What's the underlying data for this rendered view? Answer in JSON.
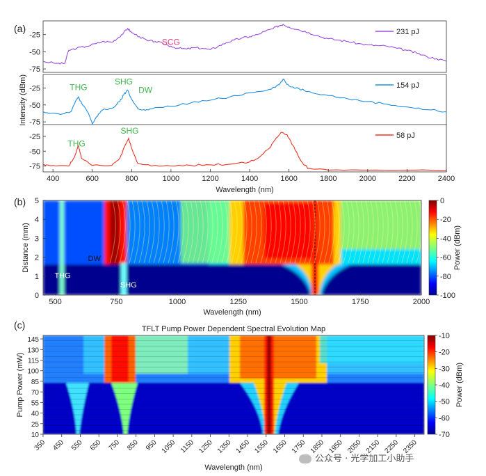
{
  "chart_data": [
    {
      "type": "line",
      "panel_label": "(a)",
      "ylabel": "Intensity (dBm)",
      "xlabel": "Wavelength (nm)",
      "xlim": [
        350,
        2400
      ],
      "x_ticks": [
        400,
        600,
        800,
        1000,
        1200,
        1400,
        1600,
        1800,
        2000,
        2200,
        2400
      ],
      "subplots": [
        {
          "name": "231 pJ",
          "color": "#9b4ddc",
          "ylim": [
            -80,
            -5
          ],
          "yticks": [
            -25,
            -50,
            -75
          ],
          "annotations": [
            {
              "text": "SCG",
              "x": 1000,
              "y": -40,
              "color": "#e0407a"
            }
          ],
          "points": [
            [
              350,
              -64
            ],
            [
              420,
              -67
            ],
            [
              460,
              -67
            ],
            [
              480,
              -48
            ],
            [
              520,
              -45
            ],
            [
              570,
              -42
            ],
            [
              620,
              -38
            ],
            [
              660,
              -35
            ],
            [
              700,
              -36
            ],
            [
              730,
              -30
            ],
            [
              760,
              -22
            ],
            [
              780,
              -16
            ],
            [
              800,
              -22
            ],
            [
              840,
              -28
            ],
            [
              880,
              -34
            ],
            [
              920,
              -35
            ],
            [
              960,
              -38
            ],
            [
              1000,
              -42
            ],
            [
              1040,
              -45
            ],
            [
              1080,
              -46
            ],
            [
              1120,
              -44
            ],
            [
              1160,
              -45
            ],
            [
              1200,
              -47
            ],
            [
              1240,
              -42
            ],
            [
              1280,
              -37
            ],
            [
              1320,
              -33
            ],
            [
              1360,
              -30
            ],
            [
              1400,
              -28
            ],
            [
              1440,
              -25
            ],
            [
              1480,
              -20
            ],
            [
              1520,
              -16
            ],
            [
              1550,
              -12
            ],
            [
              1570,
              -10
            ],
            [
              1600,
              -14
            ],
            [
              1650,
              -18
            ],
            [
              1700,
              -22
            ],
            [
              1750,
              -27
            ],
            [
              1800,
              -31
            ],
            [
              1850,
              -33
            ],
            [
              1900,
              -35
            ],
            [
              1950,
              -38
            ],
            [
              2000,
              -40
            ],
            [
              2050,
              -41
            ],
            [
              2100,
              -42
            ],
            [
              2150,
              -45
            ],
            [
              2200,
              -48
            ],
            [
              2250,
              -52
            ],
            [
              2300,
              -57
            ],
            [
              2350,
              -60
            ],
            [
              2400,
              -64
            ]
          ]
        },
        {
          "name": "154 pJ",
          "color": "#1f8fdc",
          "ylim": [
            -80,
            -5
          ],
          "yticks": [
            -25,
            -50,
            -75
          ],
          "annotations": [
            {
              "text": "THG",
              "x": 530,
              "y": -28,
              "color": "#3cb44b"
            },
            {
              "text": "SHG",
              "x": 760,
              "y": -20,
              "color": "#3cb44b"
            },
            {
              "text": "DW",
              "x": 870,
              "y": -32,
              "color": "#3cb44b"
            }
          ],
          "points": [
            [
              350,
              -60
            ],
            [
              400,
              -62
            ],
            [
              450,
              -63
            ],
            [
              490,
              -60
            ],
            [
              510,
              -48
            ],
            [
              530,
              -38
            ],
            [
              550,
              -50
            ],
            [
              580,
              -62
            ],
            [
              600,
              -78
            ],
            [
              620,
              -68
            ],
            [
              650,
              -58
            ],
            [
              700,
              -55
            ],
            [
              740,
              -45
            ],
            [
              760,
              -35
            ],
            [
              780,
              -28
            ],
            [
              800,
              -42
            ],
            [
              830,
              -55
            ],
            [
              870,
              -58
            ],
            [
              900,
              -56
            ],
            [
              1000,
              -52
            ],
            [
              1100,
              -47
            ],
            [
              1200,
              -43
            ],
            [
              1300,
              -38
            ],
            [
              1400,
              -32
            ],
            [
              1500,
              -27
            ],
            [
              1550,
              -20
            ],
            [
              1570,
              -12
            ],
            [
              1600,
              -22
            ],
            [
              1650,
              -26
            ],
            [
              1700,
              -30
            ],
            [
              1800,
              -36
            ],
            [
              1900,
              -41
            ],
            [
              2000,
              -45
            ],
            [
              2100,
              -49
            ],
            [
              2200,
              -53
            ],
            [
              2300,
              -57
            ],
            [
              2400,
              -60
            ]
          ]
        },
        {
          "name": "58 pJ",
          "color": "#e83523",
          "ylim": [
            -85,
            -5
          ],
          "yticks": [
            -25,
            -50,
            -75
          ],
          "annotations": [
            {
              "text": "THG",
              "x": 520,
              "y": -42,
              "color": "#3cb44b"
            },
            {
              "text": "SHG",
              "x": 790,
              "y": -20,
              "color": "#3cb44b"
            }
          ],
          "points": [
            [
              350,
              -72
            ],
            [
              400,
              -74
            ],
            [
              480,
              -75
            ],
            [
              510,
              -60
            ],
            [
              528,
              -40
            ],
            [
              545,
              -62
            ],
            [
              600,
              -74
            ],
            [
              700,
              -74
            ],
            [
              740,
              -62
            ],
            [
              770,
              -38
            ],
            [
              785,
              -28
            ],
            [
              800,
              -45
            ],
            [
              830,
              -70
            ],
            [
              900,
              -75
            ],
            [
              1000,
              -75
            ],
            [
              1100,
              -74
            ],
            [
              1200,
              -73
            ],
            [
              1300,
              -72
            ],
            [
              1400,
              -68
            ],
            [
              1450,
              -60
            ],
            [
              1500,
              -45
            ],
            [
              1530,
              -30
            ],
            [
              1560,
              -18
            ],
            [
              1590,
              -22
            ],
            [
              1620,
              -40
            ],
            [
              1650,
              -60
            ],
            [
              1680,
              -74
            ],
            [
              1700,
              -79
            ],
            [
              1800,
              -82
            ],
            [
              2000,
              -82
            ],
            [
              2200,
              -82
            ],
            [
              2400,
              -83
            ]
          ]
        }
      ]
    },
    {
      "type": "heatmap",
      "panel_label": "(b)",
      "xlabel": "Wavelength (nm)",
      "ylabel": "Distance (mm)",
      "xlim": [
        450,
        2000
      ],
      "ylim": [
        0,
        5
      ],
      "x_ticks": [
        500,
        750,
        1000,
        1250,
        1500,
        1750,
        2000
      ],
      "y_ticks": [
        0,
        1,
        2,
        3,
        4,
        5
      ],
      "annotations": [
        {
          "text": "THG",
          "x": 530,
          "y": 0.9
        },
        {
          "text": "SHG",
          "x": 800,
          "y": 0.4
        },
        {
          "text": "DW",
          "x": 660,
          "y": 1.8
        }
      ],
      "colorbar": {
        "label": "Power (dBm)",
        "min": -100,
        "max": 0,
        "ticks": [
          0,
          -20,
          -40,
          -60,
          -80,
          -100
        ]
      }
    },
    {
      "type": "heatmap",
      "panel_label": "(c)",
      "title": "TFLT Pump Power Dependent Spectral Evolution Map",
      "xlabel": "Wavelength (nm)",
      "ylabel": "Pump Power (mW)",
      "xlim": [
        350,
        2400
      ],
      "x_ticks": [
        350,
        450,
        550,
        650,
        750,
        850,
        950,
        1050,
        1150,
        1250,
        1350,
        1450,
        1550,
        1650,
        1750,
        1850,
        1950,
        2050,
        2150,
        2250,
        2350
      ],
      "y_ticks": [
        10,
        25,
        40,
        55,
        70,
        85,
        100,
        115,
        130,
        145
      ],
      "colorbar": {
        "label": "Power (dBm)",
        "min": -70,
        "max": -10,
        "ticks": [
          -10,
          -20,
          -30,
          -40,
          -50,
          -60,
          -70
        ]
      }
    }
  ],
  "watermark": {
    "text": "公众号 · 光学加工小助手"
  }
}
